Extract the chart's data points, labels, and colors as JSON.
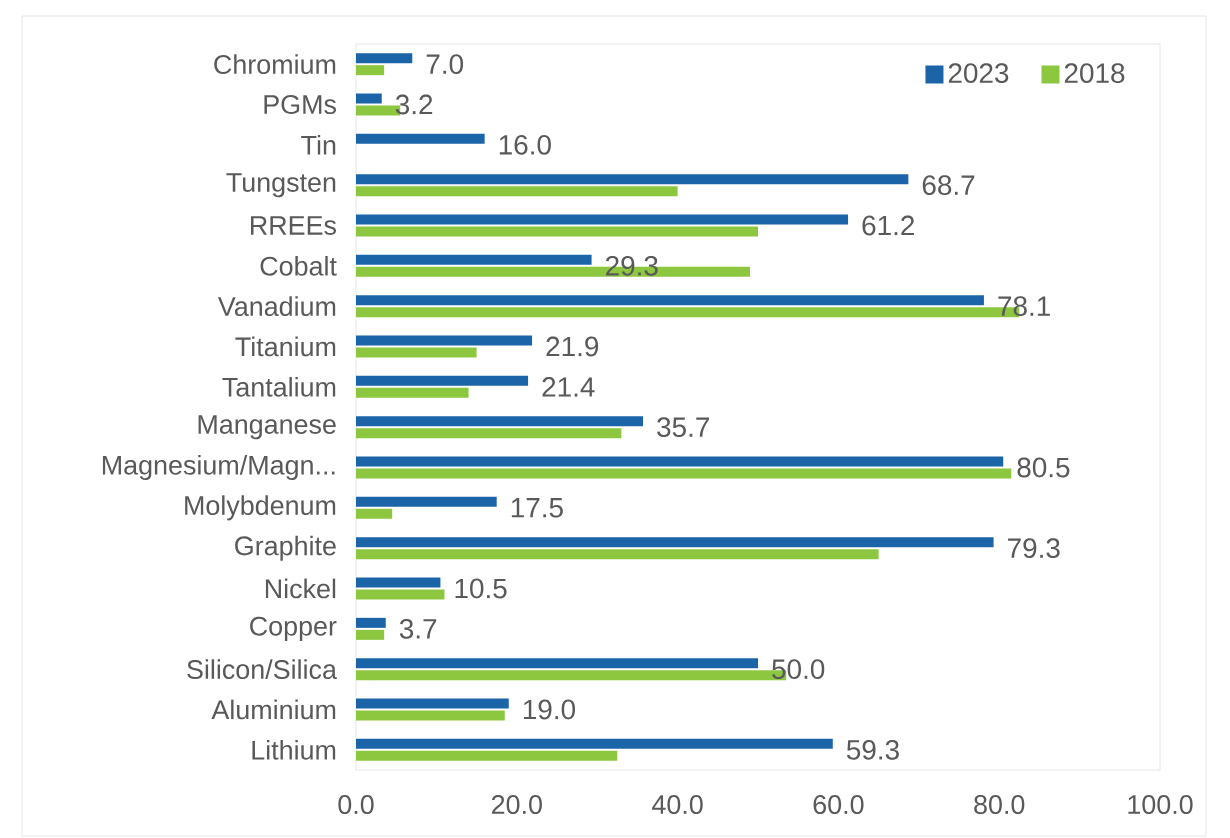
{
  "chart_data": {
    "type": "bar",
    "orientation": "horizontal",
    "categories": [
      "Chromium",
      "PGMs",
      "Tin",
      "Tungsten",
      "RREEs",
      "Cobalt",
      "Vanadium",
      "Titanium",
      "Tantalium",
      "Manganese",
      "Magnesium/Magn...",
      "Molybdenum",
      "Graphite",
      "Nickel",
      "Copper",
      "Silicon/Silica",
      "Aluminium",
      "Lithium"
    ],
    "series": [
      {
        "name": "2023",
        "color": "#1c64a8",
        "values": [
          7.0,
          3.2,
          16.0,
          68.7,
          61.2,
          29.3,
          78.1,
          21.9,
          21.4,
          35.7,
          80.5,
          17.5,
          79.3,
          10.5,
          3.7,
          50.0,
          19.0,
          59.3
        ],
        "value_labels": [
          "7.0",
          "3.2",
          "16.0",
          "68.7",
          "61.2",
          "29.3",
          "78.1",
          "21.9",
          "21.4",
          "35.7",
          "80.5",
          "17.5",
          "79.3",
          "10.5",
          "3.7",
          "50.0",
          "19.0",
          "59.3"
        ]
      },
      {
        "name": "2018",
        "color": "#8dc63f",
        "values": [
          3.5,
          5.5,
          0,
          40,
          50,
          49,
          82.5,
          15,
          14,
          33,
          81.5,
          4.5,
          65,
          11,
          3.5,
          53.5,
          18.5,
          32.5
        ]
      }
    ],
    "xlim": [
      0,
      100
    ],
    "xticks": [
      {
        "value": 0,
        "label": "0.0"
      },
      {
        "value": 20,
        "label": "20.0"
      },
      {
        "value": 40,
        "label": "40.0"
      },
      {
        "value": 60,
        "label": "60.0"
      },
      {
        "value": 80,
        "label": "80.0"
      },
      {
        "value": 100,
        "label": "100.0"
      }
    ],
    "legend": "top right"
  }
}
